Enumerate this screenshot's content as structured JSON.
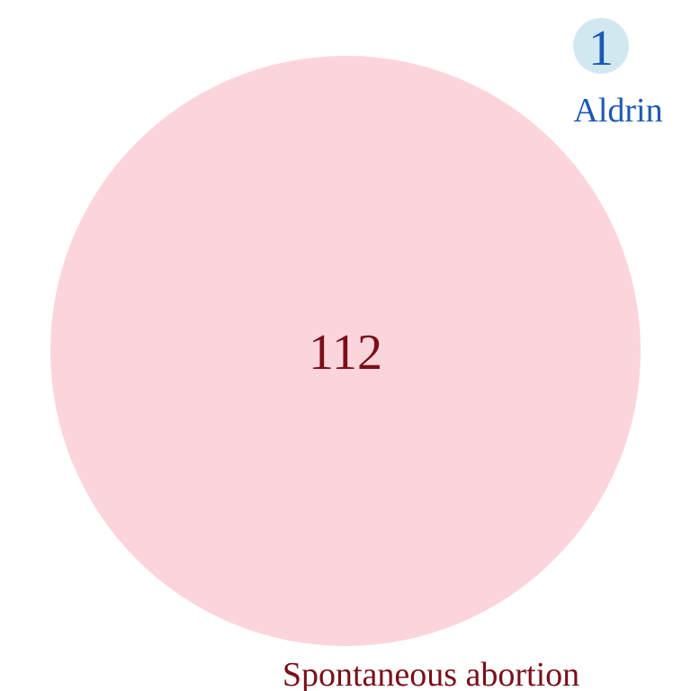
{
  "venn": {
    "sets": [
      {
        "name": "Spontaneous abortion",
        "count": "112",
        "fill_color": "#fcd5dc",
        "text_color": "#7a0f19"
      },
      {
        "name": "Aldrin",
        "count": "1",
        "fill_color": "#d2e8f1",
        "text_color": "#1a5ab4"
      }
    ],
    "overlap_count": 0
  }
}
